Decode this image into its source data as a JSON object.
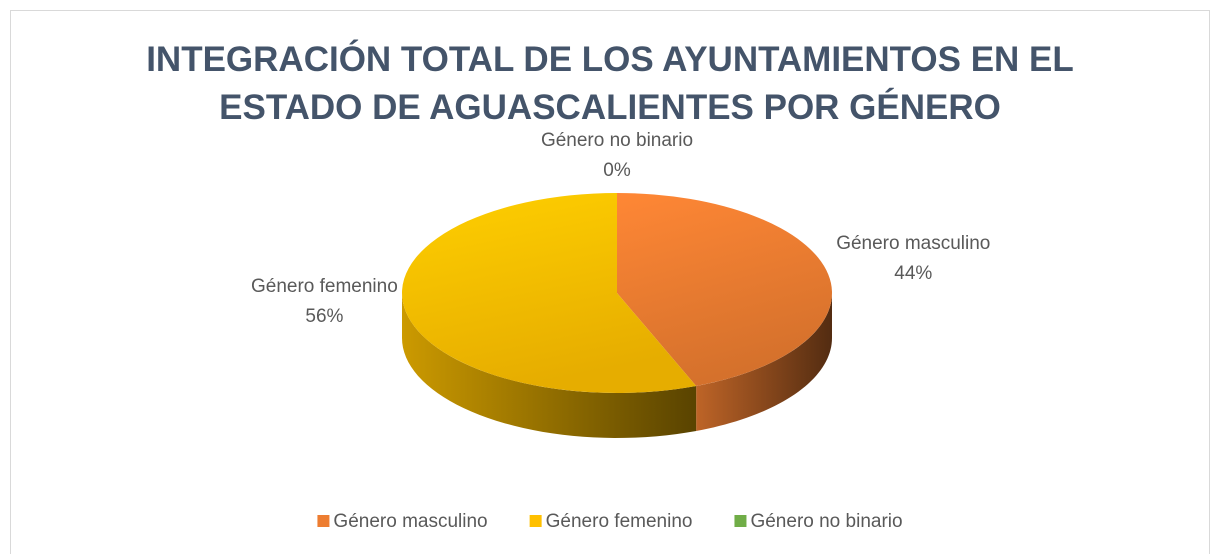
{
  "chart_data": {
    "type": "pie3d",
    "title": "INTEGRACIÓN TOTAL DE LOS AYUNTAMIENTOS EN EL ESTADO DE AGUASCALIENTES POR GÉNERO",
    "categories": [
      "Género masculino",
      "Género femenino",
      "Género no binario"
    ],
    "values": [
      44,
      56,
      0
    ],
    "value_labels": [
      "44%",
      "56%",
      "0%"
    ],
    "colors": [
      "#ED7D31",
      "#FFC000",
      "#70AD47"
    ],
    "legend": "bottom"
  }
}
